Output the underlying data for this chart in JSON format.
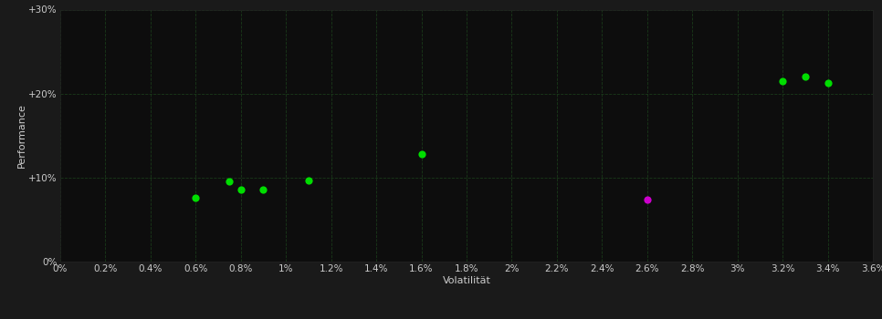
{
  "background_color": "#1a1a1a",
  "plot_bg_color": "#0d0d0d",
  "grid_color": "#1a3a1a",
  "xlabel": "Volatilität",
  "ylabel": "Performance",
  "xlim": [
    0.0,
    0.036
  ],
  "ylim": [
    0.0,
    0.3
  ],
  "xticks": [
    0.0,
    0.002,
    0.004,
    0.006,
    0.008,
    0.01,
    0.012,
    0.014,
    0.016,
    0.018,
    0.02,
    0.022,
    0.024,
    0.026,
    0.028,
    0.03,
    0.032,
    0.034,
    0.036
  ],
  "yticks": [
    0.0,
    0.1,
    0.2,
    0.3
  ],
  "green_points": [
    [
      0.006,
      0.076
    ],
    [
      0.0075,
      0.096
    ],
    [
      0.008,
      0.086
    ],
    [
      0.009,
      0.086
    ],
    [
      0.011,
      0.097
    ],
    [
      0.016,
      0.128
    ],
    [
      0.032,
      0.215
    ],
    [
      0.033,
      0.22
    ],
    [
      0.034,
      0.213
    ]
  ],
  "magenta_points": [
    [
      0.026,
      0.074
    ]
  ],
  "point_size": 35,
  "green_color": "#00dd00",
  "magenta_color": "#cc00cc",
  "text_color": "#cccccc",
  "xlabel_fontsize": 8,
  "ylabel_fontsize": 8,
  "tick_fontsize": 7.5
}
